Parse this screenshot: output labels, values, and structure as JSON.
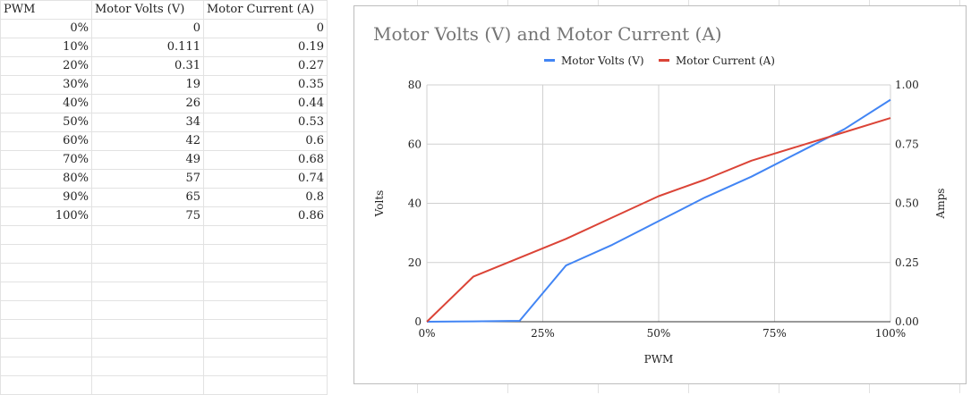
{
  "table": {
    "headers": [
      "PWM",
      "Motor Volts (V)",
      "Motor Current (A)"
    ],
    "rows": [
      [
        "0%",
        "0",
        "0"
      ],
      [
        "10%",
        "0.111",
        "0.19"
      ],
      [
        "20%",
        "0.31",
        "0.27"
      ],
      [
        "30%",
        "19",
        "0.35"
      ],
      [
        "40%",
        "26",
        "0.44"
      ],
      [
        "50%",
        "34",
        "0.53"
      ],
      [
        "60%",
        "42",
        "0.6"
      ],
      [
        "70%",
        "49",
        "0.68"
      ],
      [
        "80%",
        "57",
        "0.74"
      ],
      [
        "90%",
        "65",
        "0.8"
      ],
      [
        "100%",
        "75",
        "0.86"
      ]
    ]
  },
  "chart_data": {
    "type": "line",
    "title": "Motor Volts (V) and Motor Current (A)",
    "xlabel": "PWM",
    "ylabel": "Volts",
    "y2label": "Amps",
    "x": [
      0,
      10,
      20,
      30,
      40,
      50,
      60,
      70,
      80,
      90,
      100
    ],
    "xlim": [
      0,
      100
    ],
    "x_ticks": [
      0,
      25,
      50,
      75,
      100
    ],
    "x_tick_labels": [
      "0%",
      "25%",
      "50%",
      "75%",
      "100%"
    ],
    "ylim": [
      0,
      80
    ],
    "y_ticks": [
      0,
      20,
      40,
      60,
      80
    ],
    "y_tick_labels": [
      "0",
      "20",
      "40",
      "60",
      "80"
    ],
    "y2lim": [
      0,
      1
    ],
    "y2_ticks": [
      0,
      0.25,
      0.5,
      0.75,
      1
    ],
    "y2_tick_labels": [
      "0.00",
      "0.25",
      "0.50",
      "0.75",
      "1.00"
    ],
    "grid": true,
    "legend_position": "top",
    "series": [
      {
        "name": "Motor Volts (V)",
        "axis": "left",
        "color": "#4285f4",
        "values": [
          0,
          0.111,
          0.31,
          19,
          26,
          34,
          42,
          49,
          57,
          65,
          75
        ]
      },
      {
        "name": "Motor Current (A)",
        "axis": "right",
        "color": "#db4437",
        "values": [
          0,
          0.19,
          0.27,
          0.35,
          0.44,
          0.53,
          0.6,
          0.68,
          0.74,
          0.8,
          0.86
        ]
      }
    ]
  }
}
